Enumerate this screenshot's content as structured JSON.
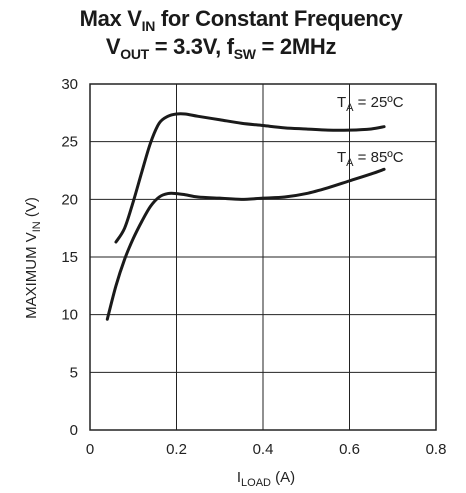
{
  "chart_data": {
    "type": "line",
    "title": {
      "line1_prefix": "Max V",
      "line1_sub": "IN",
      "line1_suffix": " for Constant Frequency",
      "line2_a": "V",
      "line2_a_sub": "OUT",
      "line2_b": " = 3.3V, f",
      "line2_b_sub": "SW",
      "line2_c": " = 2MHz"
    },
    "xlabel": {
      "main": "I",
      "sub": "LOAD",
      "suffix": " (A)"
    },
    "ylabel": {
      "main": "MAXIMUM V",
      "sub": "IN",
      "suffix": " (V)"
    },
    "xlim": [
      0,
      0.8
    ],
    "ylim": [
      0,
      30
    ],
    "x_ticks": [
      0,
      0.2,
      0.4,
      0.6,
      0.8
    ],
    "x_tick_labels": [
      "0",
      "0.2",
      "0.4",
      "0.6",
      "0.8"
    ],
    "y_ticks": [
      0,
      5,
      10,
      15,
      20,
      25,
      30
    ],
    "y_tick_labels": [
      "0",
      "5",
      "10",
      "15",
      "20",
      "25",
      "30"
    ],
    "grid": true,
    "series": [
      {
        "label_main": "T",
        "label_sub": "A",
        "label_suffix": " = 25ºC",
        "x": [
          0.06,
          0.08,
          0.1,
          0.12,
          0.14,
          0.16,
          0.18,
          0.2,
          0.22,
          0.25,
          0.3,
          0.35,
          0.4,
          0.45,
          0.5,
          0.55,
          0.6,
          0.65,
          0.68
        ],
        "y": [
          16.3,
          17.5,
          19.8,
          22.4,
          24.9,
          26.6,
          27.2,
          27.4,
          27.4,
          27.2,
          26.9,
          26.6,
          26.4,
          26.2,
          26.1,
          26.0,
          26.0,
          26.1,
          26.3
        ]
      },
      {
        "label_main": "T",
        "label_sub": "A",
        "label_suffix": " = 85ºC",
        "x": [
          0.04,
          0.06,
          0.08,
          0.1,
          0.12,
          0.14,
          0.16,
          0.18,
          0.2,
          0.22,
          0.25,
          0.3,
          0.35,
          0.4,
          0.45,
          0.5,
          0.55,
          0.6,
          0.65,
          0.68
        ],
        "y": [
          9.6,
          12.5,
          14.8,
          16.6,
          18.1,
          19.4,
          20.2,
          20.5,
          20.5,
          20.4,
          20.2,
          20.1,
          20.0,
          20.1,
          20.2,
          20.5,
          21.0,
          21.6,
          22.2,
          22.6
        ]
      }
    ]
  }
}
